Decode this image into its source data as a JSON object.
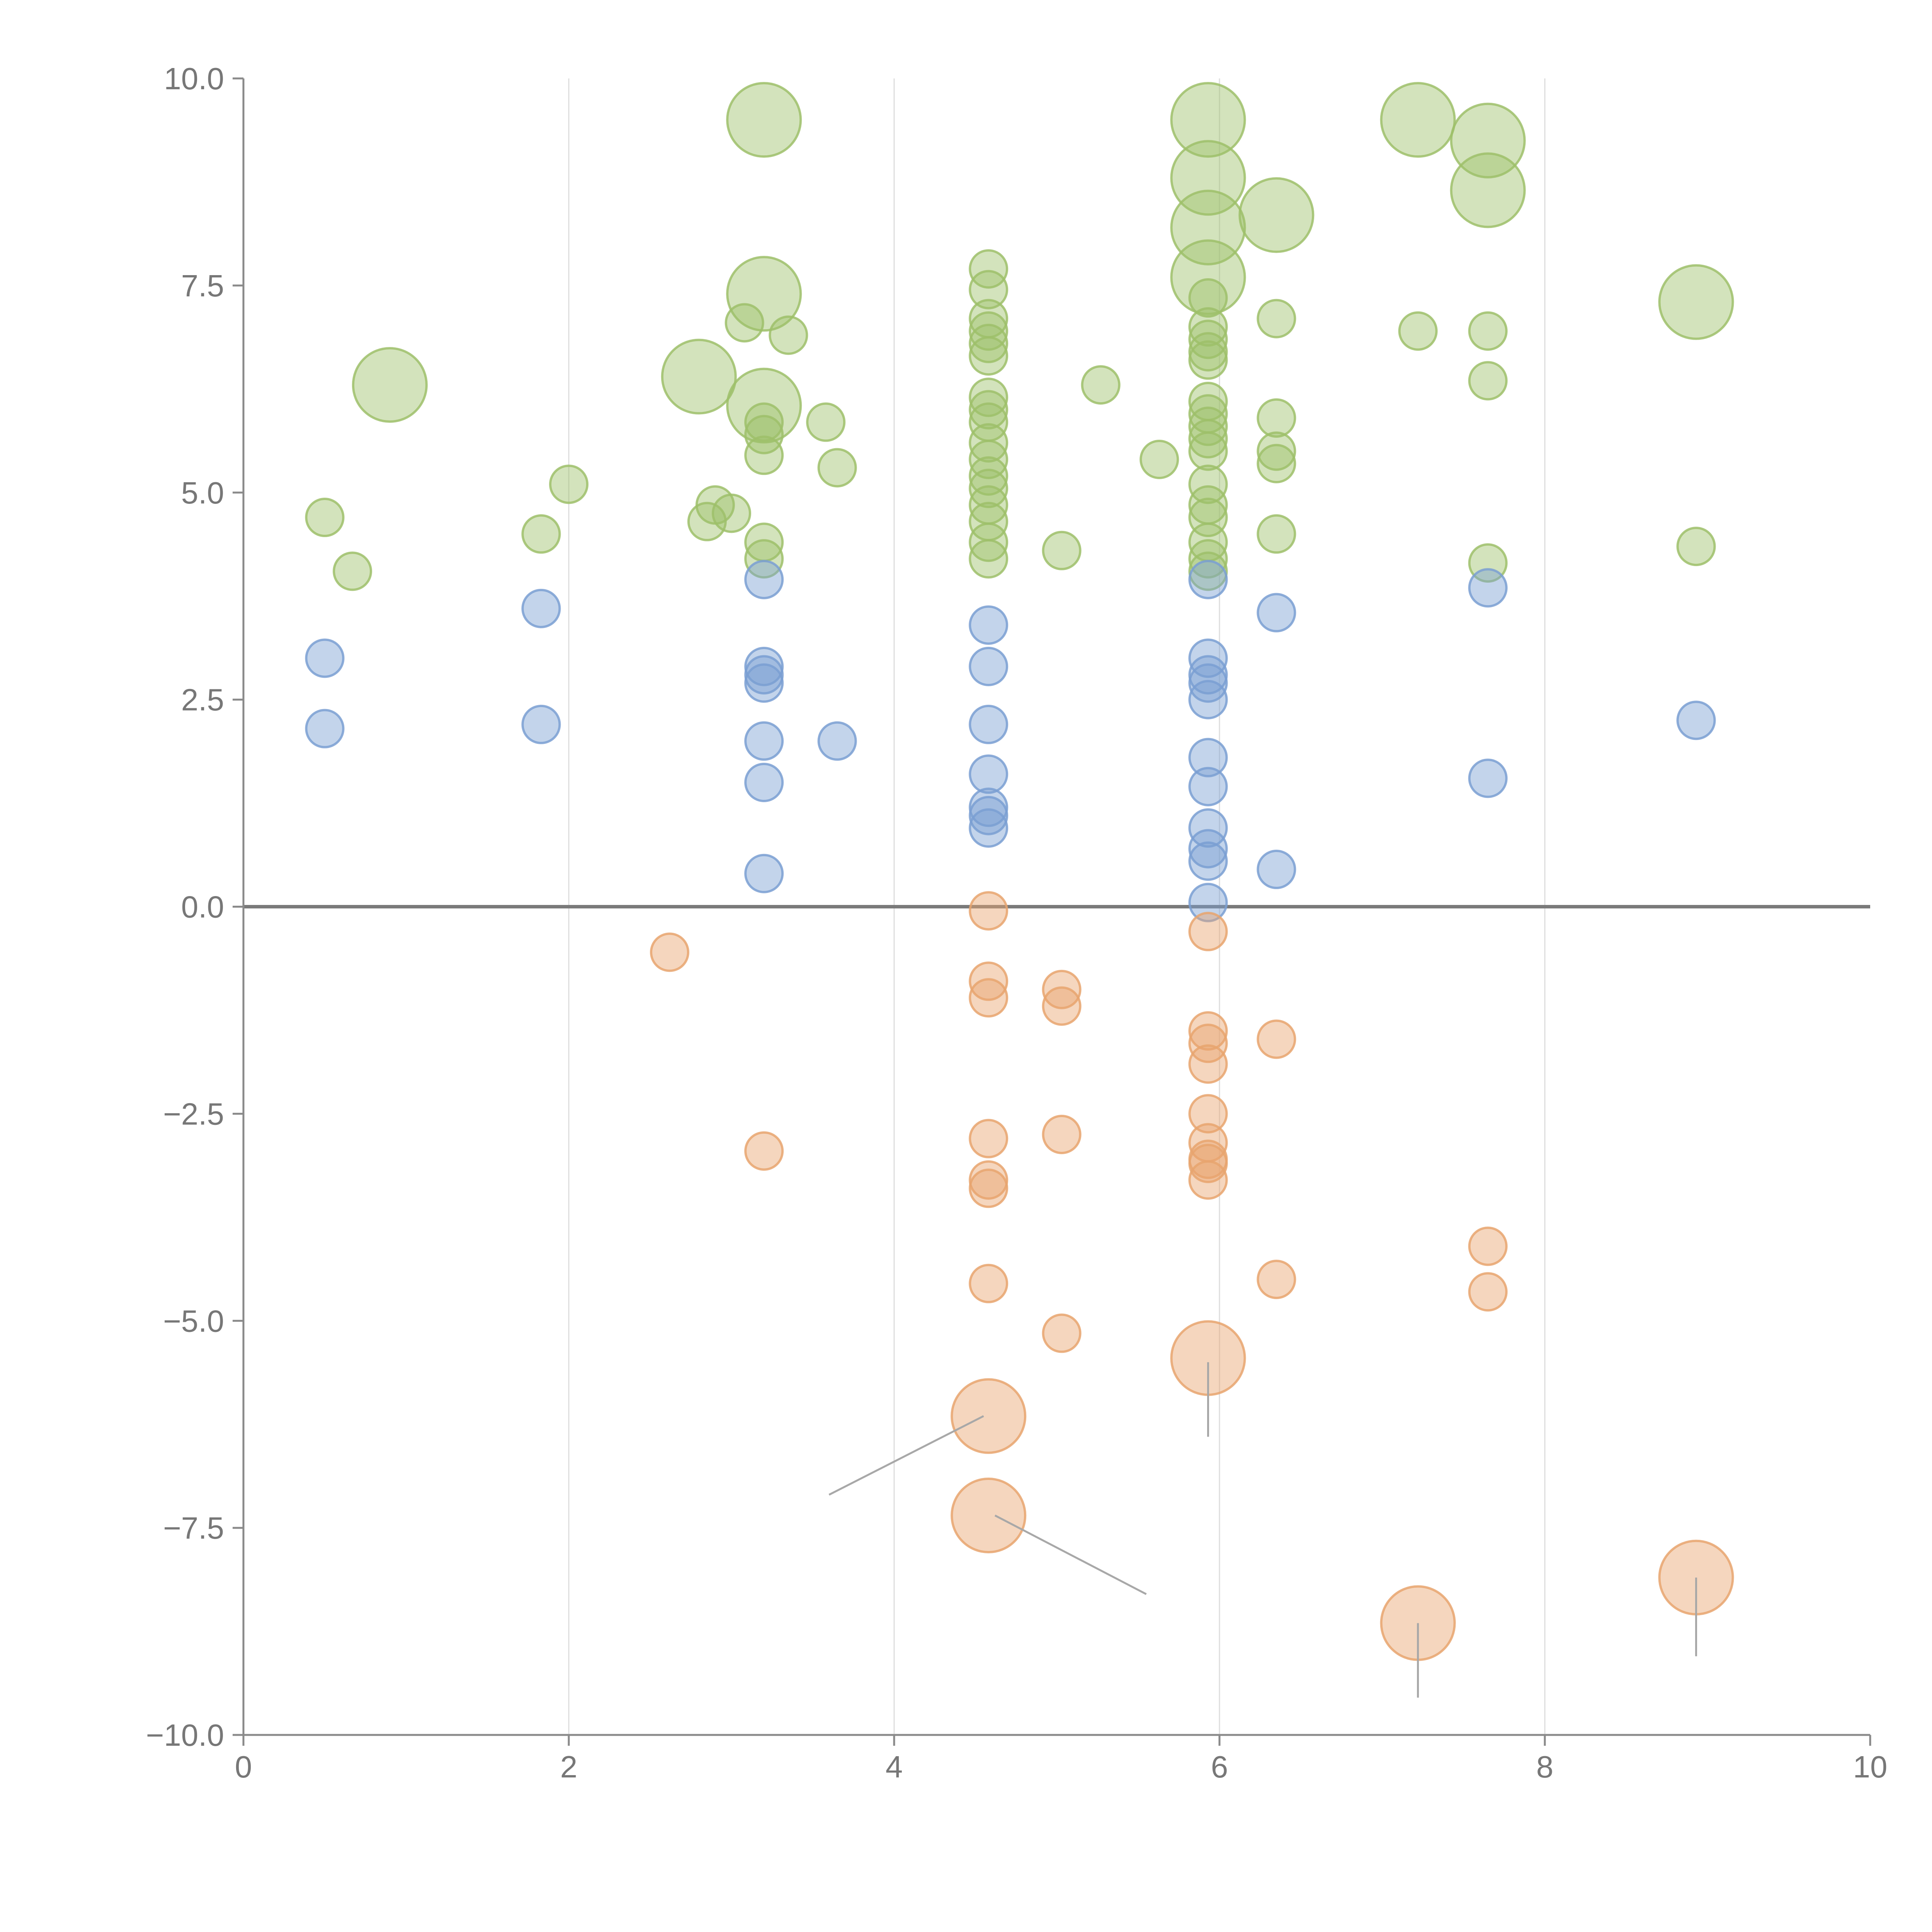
{
  "chart_data": {
    "type": "scatter",
    "title": "",
    "xlabel": "",
    "ylabel": "",
    "xlim": [
      0,
      10
    ],
    "ylim": [
      -10,
      10
    ],
    "x_ticks": [
      "0",
      "2",
      "4",
      "6",
      "8",
      "10"
    ],
    "y_ticks": [
      "10.0",
      "7.5",
      "5.0",
      "2.5",
      "0.0",
      "−2.5",
      "−5.0",
      "−7.5",
      "−10.0"
    ],
    "grid": "vertical",
    "colors": {
      "green": "#9dc06a",
      "blue": "#7a9fd2",
      "orange": "#e8a46e",
      "axis": "#8a8a8a",
      "grid": "#dddddd",
      "zero_line": "#7a7a7a"
    },
    "series": [
      {
        "name": "green",
        "points": [
          {
            "x": 3.2,
            "y": 9.5,
            "size": "large"
          },
          {
            "x": 5.93,
            "y": 9.5,
            "size": "large"
          },
          {
            "x": 7.22,
            "y": 9.5,
            "size": "large"
          },
          {
            "x": 7.65,
            "y": 9.25,
            "size": "large"
          },
          {
            "x": 5.93,
            "y": 8.8,
            "size": "large"
          },
          {
            "x": 7.65,
            "y": 8.65,
            "size": "large"
          },
          {
            "x": 6.35,
            "y": 8.35,
            "size": "large"
          },
          {
            "x": 5.93,
            "y": 8.2,
            "size": "large"
          },
          {
            "x": 5.93,
            "y": 7.6,
            "size": "large"
          },
          {
            "x": 3.2,
            "y": 7.4,
            "size": "large"
          },
          {
            "x": 8.93,
            "y": 7.3,
            "size": "large"
          },
          {
            "x": 0.9,
            "y": 6.3,
            "size": "large"
          },
          {
            "x": 2.8,
            "y": 6.4,
            "size": "large"
          },
          {
            "x": 3.2,
            "y": 6.05,
            "size": "large"
          },
          {
            "x": 4.58,
            "y": 7.7
          },
          {
            "x": 4.58,
            "y": 7.45
          },
          {
            "x": 4.58,
            "y": 7.1
          },
          {
            "x": 4.58,
            "y": 6.95
          },
          {
            "x": 4.58,
            "y": 6.8
          },
          {
            "x": 4.58,
            "y": 6.65
          },
          {
            "x": 4.58,
            "y": 6.15
          },
          {
            "x": 4.58,
            "y": 6.0
          },
          {
            "x": 4.58,
            "y": 5.85
          },
          {
            "x": 4.58,
            "y": 5.6
          },
          {
            "x": 4.58,
            "y": 5.4
          },
          {
            "x": 4.58,
            "y": 5.2
          },
          {
            "x": 4.58,
            "y": 5.05
          },
          {
            "x": 4.58,
            "y": 4.85
          },
          {
            "x": 4.58,
            "y": 4.65
          },
          {
            "x": 4.58,
            "y": 4.4
          },
          {
            "x": 4.58,
            "y": 4.2
          },
          {
            "x": 5.93,
            "y": 7.35
          },
          {
            "x": 5.93,
            "y": 7.0
          },
          {
            "x": 5.93,
            "y": 6.85
          },
          {
            "x": 5.93,
            "y": 6.7
          },
          {
            "x": 5.93,
            "y": 6.6
          },
          {
            "x": 5.93,
            "y": 6.1
          },
          {
            "x": 5.93,
            "y": 5.95
          },
          {
            "x": 5.93,
            "y": 5.8
          },
          {
            "x": 5.93,
            "y": 5.65
          },
          {
            "x": 5.93,
            "y": 5.5
          },
          {
            "x": 5.93,
            "y": 5.1
          },
          {
            "x": 5.93,
            "y": 4.85
          },
          {
            "x": 5.93,
            "y": 4.7
          },
          {
            "x": 5.93,
            "y": 4.4
          },
          {
            "x": 5.93,
            "y": 4.2
          },
          {
            "x": 5.93,
            "y": 4.05
          },
          {
            "x": 3.08,
            "y": 7.05
          },
          {
            "x": 3.35,
            "y": 6.9
          },
          {
            "x": 3.2,
            "y": 5.85
          },
          {
            "x": 3.2,
            "y": 5.7
          },
          {
            "x": 3.2,
            "y": 5.45
          },
          {
            "x": 3.2,
            "y": 4.4
          },
          {
            "x": 3.2,
            "y": 4.2
          },
          {
            "x": 3.58,
            "y": 5.85
          },
          {
            "x": 3.65,
            "y": 5.3
          },
          {
            "x": 2.9,
            "y": 4.85
          },
          {
            "x": 3.0,
            "y": 4.75
          },
          {
            "x": 2.85,
            "y": 4.65
          },
          {
            "x": 0.5,
            "y": 4.7
          },
          {
            "x": 0.67,
            "y": 4.05
          },
          {
            "x": 1.83,
            "y": 4.5
          },
          {
            "x": 2.0,
            "y": 5.1
          },
          {
            "x": 5.27,
            "y": 6.3
          },
          {
            "x": 5.03,
            "y": 4.3
          },
          {
            "x": 5.63,
            "y": 5.4
          },
          {
            "x": 6.35,
            "y": 7.1
          },
          {
            "x": 6.35,
            "y": 5.9
          },
          {
            "x": 6.35,
            "y": 5.5
          },
          {
            "x": 6.35,
            "y": 5.35
          },
          {
            "x": 6.35,
            "y": 4.5
          },
          {
            "x": 7.22,
            "y": 6.95
          },
          {
            "x": 7.65,
            "y": 6.95
          },
          {
            "x": 7.65,
            "y": 6.35
          },
          {
            "x": 7.65,
            "y": 4.15
          },
          {
            "x": 8.93,
            "y": 4.35
          }
        ]
      },
      {
        "name": "blue",
        "points": [
          {
            "x": 0.5,
            "y": 3.0
          },
          {
            "x": 0.5,
            "y": 2.15
          },
          {
            "x": 1.83,
            "y": 3.6
          },
          {
            "x": 1.83,
            "y": 2.2
          },
          {
            "x": 3.2,
            "y": 3.95
          },
          {
            "x": 3.2,
            "y": 2.9
          },
          {
            "x": 3.2,
            "y": 2.8
          },
          {
            "x": 3.2,
            "y": 2.7
          },
          {
            "x": 3.2,
            "y": 2.0
          },
          {
            "x": 3.2,
            "y": 1.5
          },
          {
            "x": 3.2,
            "y": 0.4
          },
          {
            "x": 3.65,
            "y": 2.0
          },
          {
            "x": 4.58,
            "y": 3.4
          },
          {
            "x": 4.58,
            "y": 2.9
          },
          {
            "x": 4.58,
            "y": 2.2
          },
          {
            "x": 4.58,
            "y": 1.6
          },
          {
            "x": 4.58,
            "y": 1.2
          },
          {
            "x": 4.58,
            "y": 1.1
          },
          {
            "x": 4.58,
            "y": 0.95
          },
          {
            "x": 5.93,
            "y": 3.95
          },
          {
            "x": 5.93,
            "y": 3.0
          },
          {
            "x": 5.93,
            "y": 2.8
          },
          {
            "x": 5.93,
            "y": 2.7
          },
          {
            "x": 5.93,
            "y": 2.5
          },
          {
            "x": 5.93,
            "y": 1.8
          },
          {
            "x": 5.93,
            "y": 1.45
          },
          {
            "x": 5.93,
            "y": 0.95
          },
          {
            "x": 5.93,
            "y": 0.7
          },
          {
            "x": 5.93,
            "y": 0.55
          },
          {
            "x": 5.93,
            "y": 0.05
          },
          {
            "x": 6.35,
            "y": 3.55
          },
          {
            "x": 6.35,
            "y": 0.45
          },
          {
            "x": 7.65,
            "y": 3.85
          },
          {
            "x": 7.65,
            "y": 1.55
          },
          {
            "x": 8.93,
            "y": 2.25
          }
        ]
      },
      {
        "name": "orange",
        "points": [
          {
            "x": 2.62,
            "y": -0.55
          },
          {
            "x": 3.2,
            "y": -2.95
          },
          {
            "x": 4.58,
            "y": -0.05
          },
          {
            "x": 4.58,
            "y": -0.9
          },
          {
            "x": 4.58,
            "y": -1.1
          },
          {
            "x": 4.58,
            "y": -2.8
          },
          {
            "x": 4.58,
            "y": -3.3
          },
          {
            "x": 4.58,
            "y": -3.4
          },
          {
            "x": 4.58,
            "y": -4.55
          },
          {
            "x": 4.58,
            "y": -6.15,
            "size": "large"
          },
          {
            "x": 4.58,
            "y": -7.35,
            "size": "large"
          },
          {
            "x": 5.03,
            "y": -1.0
          },
          {
            "x": 5.03,
            "y": -1.2
          },
          {
            "x": 5.03,
            "y": -2.75
          },
          {
            "x": 5.03,
            "y": -5.15
          },
          {
            "x": 5.93,
            "y": -0.3
          },
          {
            "x": 5.93,
            "y": -1.5
          },
          {
            "x": 5.93,
            "y": -1.65
          },
          {
            "x": 5.93,
            "y": -1.9
          },
          {
            "x": 5.93,
            "y": -2.5
          },
          {
            "x": 5.93,
            "y": -2.85
          },
          {
            "x": 5.93,
            "y": -3.05
          },
          {
            "x": 5.93,
            "y": -3.1
          },
          {
            "x": 5.93,
            "y": -3.3
          },
          {
            "x": 5.93,
            "y": -5.45,
            "size": "large"
          },
          {
            "x": 6.35,
            "y": -1.6
          },
          {
            "x": 6.35,
            "y": -4.5
          },
          {
            "x": 7.65,
            "y": -4.1
          },
          {
            "x": 7.65,
            "y": -4.65
          },
          {
            "x": 7.22,
            "y": -8.65,
            "size": "large"
          },
          {
            "x": 8.93,
            "y": -8.1,
            "size": "large"
          }
        ]
      }
    ],
    "annotations": [
      {
        "from": [
          4.55,
          -6.15
        ],
        "to": [
          3.6,
          -7.1
        ]
      },
      {
        "from": [
          4.62,
          -7.35
        ],
        "to": [
          5.55,
          -8.3
        ]
      },
      {
        "from": [
          5.93,
          -5.5
        ],
        "to": [
          5.93,
          -6.4
        ]
      },
      {
        "from": [
          7.22,
          -8.65
        ],
        "to": [
          7.22,
          -9.55
        ]
      },
      {
        "from": [
          8.93,
          -8.1
        ],
        "to": [
          8.93,
          -9.05
        ]
      }
    ]
  }
}
